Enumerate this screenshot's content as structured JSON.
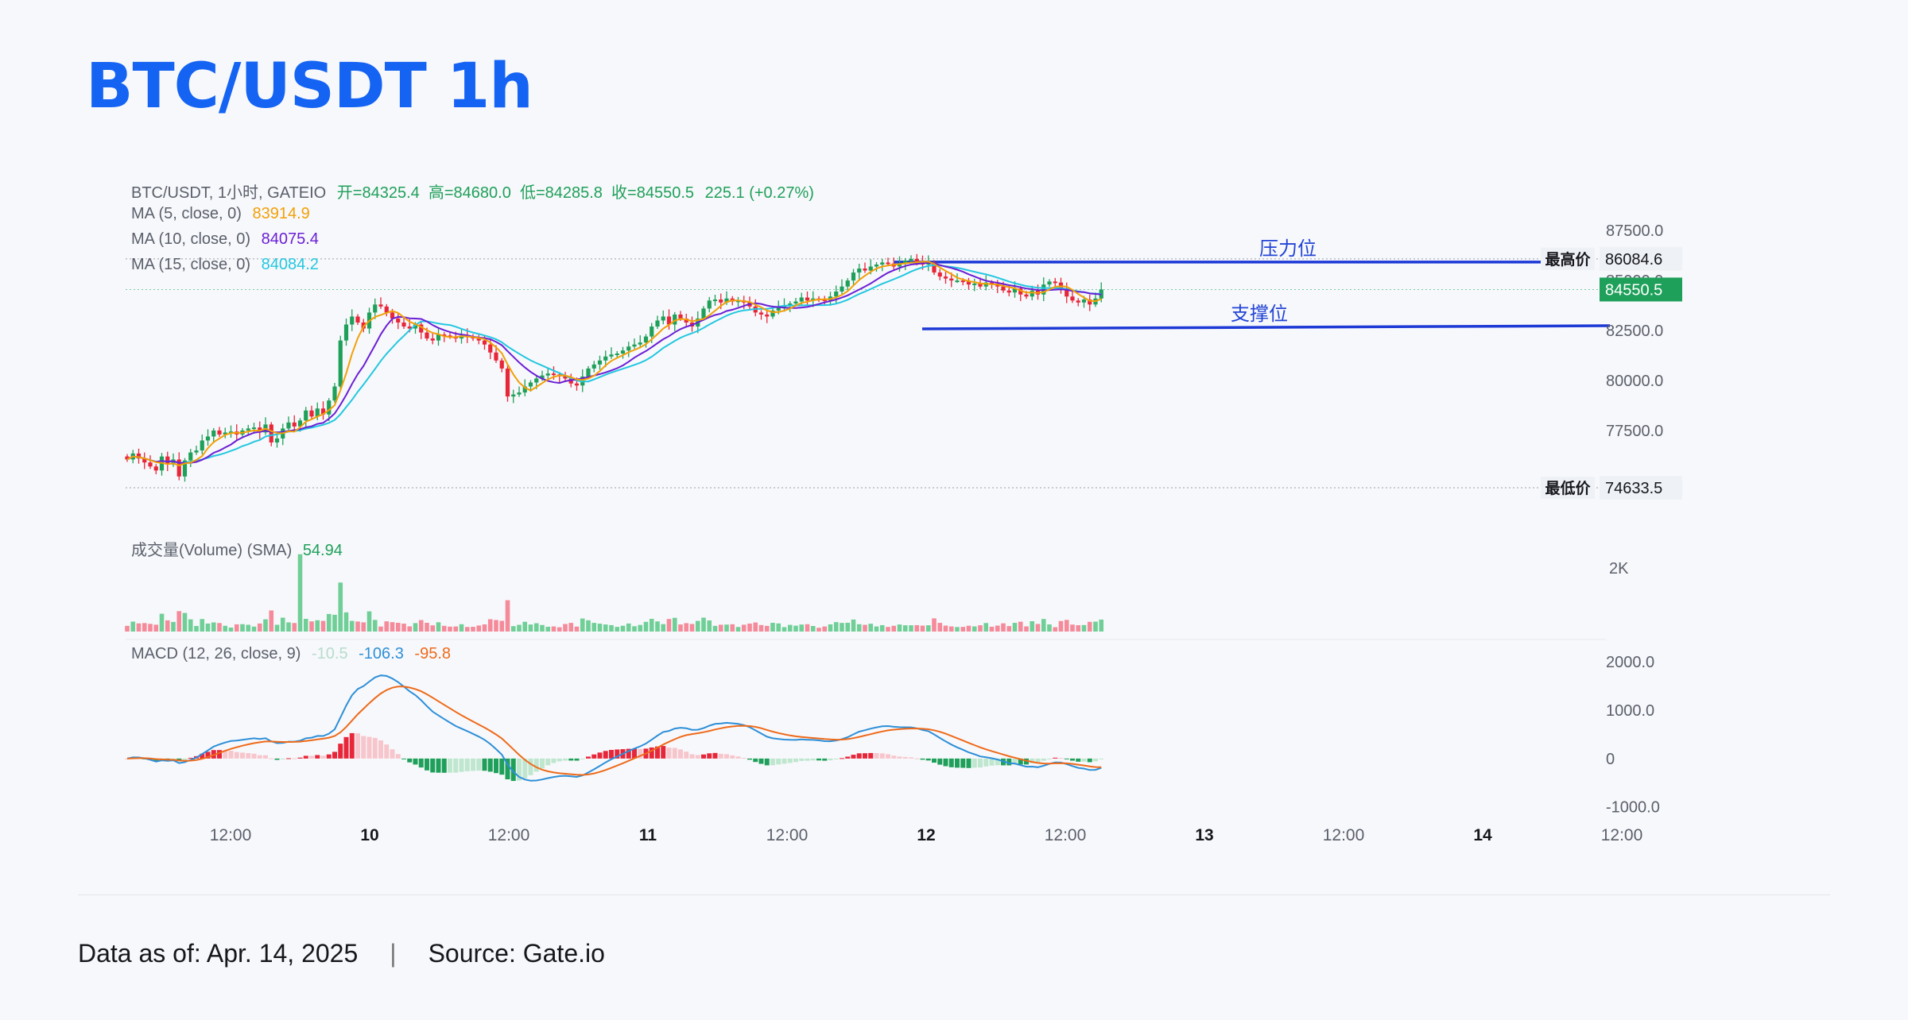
{
  "title": "BTC/USDT 1h",
  "legend": {
    "symbol_line": "BTC/USDT, 1小时, GATEIO",
    "ohlc": "开=84325.4  高=84680.0  低=84285.8  收=84550.5",
    "change": "225.1 (+0.27%)",
    "ma5_label": "MA (5, close, 0)",
    "ma5_value": "83914.9",
    "ma10_label": "MA (10, close, 0)",
    "ma10_value": "84075.4",
    "ma15_label": "MA (15, close, 0)",
    "ma15_value": "84084.2"
  },
  "volume_legend": {
    "label": "成交量(Volume) (SMA)",
    "value": "54.94"
  },
  "macd_legend": {
    "label": "MACD (12, 26, close, 9)",
    "hist": "-10.5",
    "macd": "-106.3",
    "signal": "-95.8"
  },
  "footer": {
    "date": "Data as of: Apr. 14, 2025",
    "separator": "|",
    "source": "Source: Gate.io"
  },
  "colors": {
    "up": "#1fa05a",
    "down": "#e8263a",
    "ma5": "#f2a007",
    "ma10": "#6a1fd6",
    "ma15": "#23c7e0",
    "trendline": "#1d39d6",
    "macd_line": "#2d8fd8",
    "signal_line": "#ee6a1a",
    "title": "#1463f3"
  },
  "chart_data": {
    "type": "candlestick",
    "price_axis": {
      "ticks": [
        "87500.0",
        "85000.0",
        "82500.0",
        "80000.0",
        "77500.0"
      ],
      "ylim": [
        74000,
        88700
      ]
    },
    "time_axis": [
      "12:00",
      "10",
      "12:00",
      "11",
      "12:00",
      "12",
      "12:00",
      "13",
      "12:00",
      "14",
      "12:00"
    ],
    "markers": {
      "high_label": "最高价",
      "high_value": "86084.6",
      "current_value": "84550.5",
      "low_label": "最低价",
      "low_value": "74633.5"
    },
    "annotations": {
      "resistance": "压力位",
      "support": "支撑位"
    },
    "volume_axis": {
      "ticks": [
        "2K"
      ]
    },
    "macd_axis": {
      "ticks": [
        "2000.0",
        "1000.0",
        "0",
        "-1000.0"
      ],
      "ylim": [
        -1400,
        2300
      ]
    },
    "closes": [
      76050,
      76350,
      76100,
      75900,
      75700,
      75500,
      76200,
      75800,
      76050,
      75200,
      76000,
      76400,
      76500,
      77000,
      77200,
      77500,
      77300,
      77400,
      77450,
      77300,
      77500,
      77600,
      77650,
      77400,
      77800,
      76900,
      77100,
      77600,
      77900,
      77700,
      78000,
      78500,
      78200,
      78600,
      78300,
      79000,
      79700,
      82000,
      82800,
      83200,
      82900,
      82600,
      83400,
      83800,
      83700,
      83400,
      83100,
      82900,
      82700,
      82600,
      82800,
      82400,
      82100,
      82000,
      82300,
      82250,
      82200,
      82100,
      82250,
      82200,
      82100,
      82000,
      81800,
      81400,
      81000,
      80600,
      79200,
      79300,
      79400,
      79700,
      79900,
      80100,
      80250,
      80350,
      80300,
      80250,
      80100,
      79850,
      79750,
      80200,
      80600,
      80800,
      81000,
      81200,
      81300,
      81350,
      81500,
      81700,
      81800,
      81900,
      82200,
      82700,
      83000,
      83200,
      82800,
      83300,
      83100,
      82900,
      82700,
      83100,
      83600,
      84000,
      84050,
      83900,
      84100,
      83950,
      84000,
      83900,
      83700,
      83400,
      83300,
      83200,
      83500,
      83700,
      83750,
      83850,
      83950,
      84150,
      84000,
      84100,
      84050,
      84000,
      84200,
      84450,
      84700,
      85000,
      85400,
      85600,
      85500,
      85700,
      85800,
      85900,
      85850,
      85700,
      85850,
      86000,
      86084,
      85950,
      85800,
      85900,
      85400,
      85200,
      85100,
      85000,
      85000,
      84950,
      84800,
      84850,
      84700,
      84900,
      84850,
      84700,
      84500,
      84400,
      84600,
      84300,
      84200,
      84500,
      84300,
      84800,
      84950,
      84900,
      84600,
      84200,
      84000,
      83900,
      84050,
      83800,
      84100,
      84550
    ]
  }
}
